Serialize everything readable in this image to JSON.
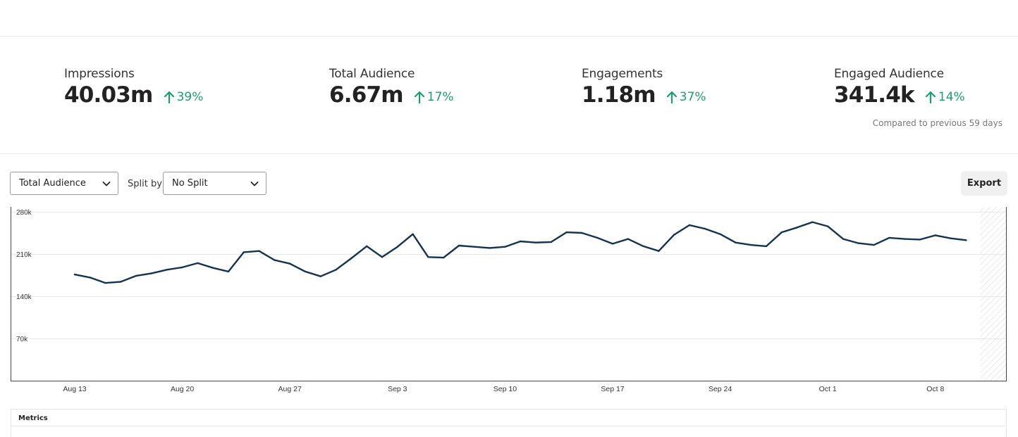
{
  "stats": [
    {
      "label": "Impressions",
      "value": "40.03m",
      "change": "39%"
    },
    {
      "label": "Total Audience",
      "value": "6.67m",
      "change": "17%"
    },
    {
      "label": "Engagements",
      "value": "1.18m",
      "change": "37%"
    },
    {
      "label": "Engaged Audience",
      "value": "341.4k",
      "change": "14%"
    }
  ],
  "compare_note": "Compared to previous 59 days",
  "controls": {
    "metric_select": "Total Audience",
    "split_label": "Split by",
    "split_select": "No Split",
    "export_label": "Export"
  },
  "metrics_label": "Metrics",
  "colors": {
    "line": "#15324f",
    "positive": "#1a9e6a"
  },
  "chart_data": {
    "type": "line",
    "title": "",
    "xlabel": "",
    "ylabel": "",
    "ylim": [
      0,
      280000
    ],
    "yticks": [
      70000,
      140000,
      210000,
      280000
    ],
    "ytick_labels": [
      "70k",
      "140k",
      "210k",
      "280k"
    ],
    "xtick_labels": [
      "Aug 13",
      "Aug 20",
      "Aug 27",
      "Sep 3",
      "Sep 10",
      "Sep 17",
      "Sep 24",
      "Oct 1",
      "Oct 8"
    ],
    "x_start": "Aug 13",
    "grid": true,
    "series": [
      {
        "name": "",
        "values": [
          176000,
          171000,
          162000,
          164000,
          174000,
          178000,
          184000,
          188000,
          195000,
          187000,
          181000,
          213000,
          215000,
          200000,
          194000,
          181000,
          173000,
          184000,
          203000,
          223000,
          205000,
          222000,
          243000,
          205000,
          204000,
          224000,
          222000,
          220000,
          222000,
          231000,
          229000,
          230000,
          246000,
          245000,
          237000,
          227000,
          235000,
          223000,
          215000,
          242000,
          258000,
          252000,
          243000,
          229000,
          225000,
          223000,
          246000,
          254000,
          263000,
          256000,
          235000,
          228000,
          225000,
          237000,
          235000,
          234000,
          241000,
          236000,
          233000
        ]
      }
    ]
  }
}
